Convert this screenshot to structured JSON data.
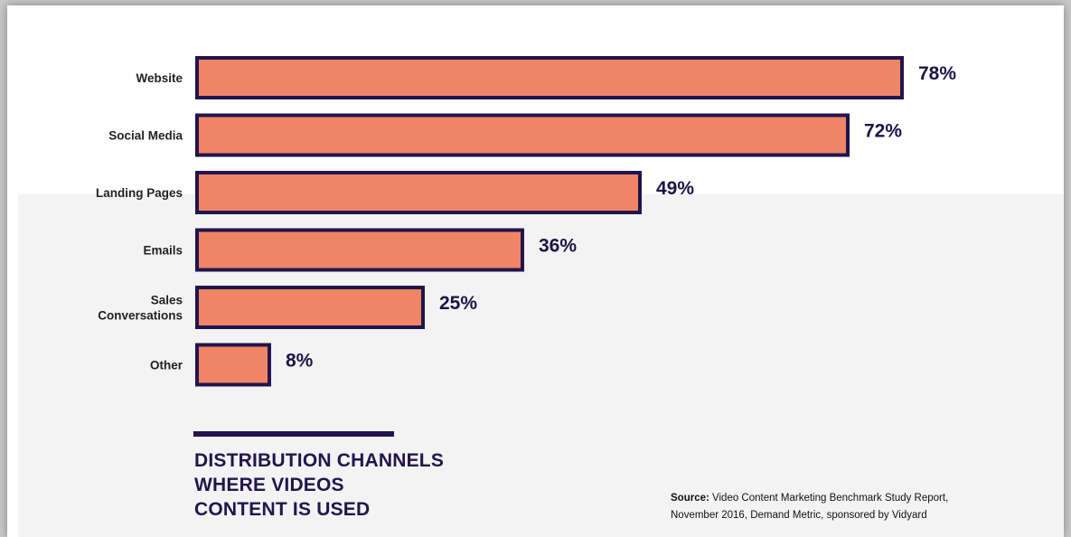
{
  "chart_data": {
    "type": "bar",
    "orientation": "horizontal",
    "categories": [
      [
        "Website"
      ],
      [
        "Social Media"
      ],
      [
        "Landing Pages"
      ],
      [
        "Emails"
      ],
      [
        "Sales",
        "Conversations"
      ],
      [
        "Other"
      ]
    ],
    "values": [
      78,
      72,
      49,
      36,
      25,
      8
    ],
    "value_labels": [
      "78%",
      "72%",
      "49%",
      "36%",
      "25%",
      "8%"
    ],
    "xlim": [
      0,
      80
    ],
    "grid": false,
    "legend": "none"
  },
  "title_lines": [
    "DISTRIBUTION CHANNELS",
    "WHERE VIDEOS",
    "CONTENT IS USED"
  ],
  "source": {
    "label": "Source:",
    "line1": "Video Content Marketing Benchmark Study Report,",
    "line2": "November 2016, Demand Metric, sponsored by Vidyard"
  },
  "colors": {
    "bar_fill": "#f08466",
    "bar_outline": "#22154d",
    "title": "#22154d",
    "background": "#ffffff",
    "band": "#f3f3f3"
  }
}
